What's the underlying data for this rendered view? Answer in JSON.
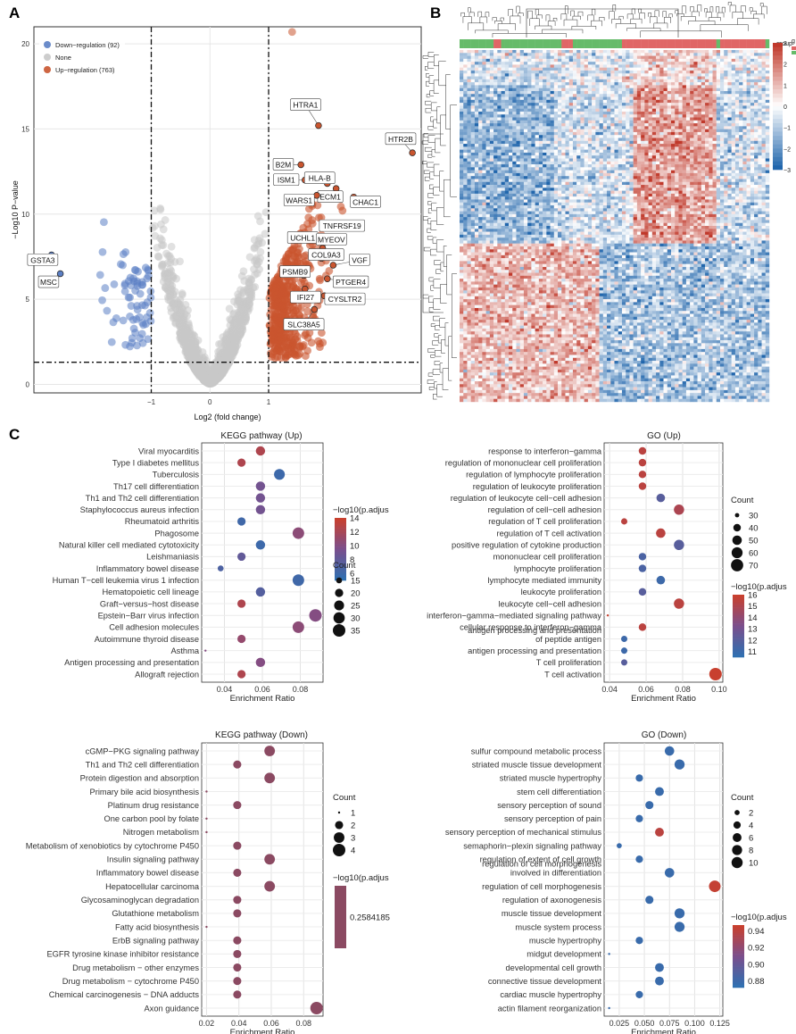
{
  "panel_labels": {
    "a": "A",
    "b": "B",
    "c": "C"
  },
  "colors": {
    "down": "#5b7fc4",
    "none": "#c8c8c8",
    "up": "#c9552f",
    "heat_high": "#c0392b",
    "heat_low": "#2166ac",
    "group_a": "#66bb6a",
    "group_b": "#e06666"
  },
  "chart_data": [
    {
      "id": "volcano",
      "type": "scatter",
      "xlabel": "Log2 (fold change)",
      "ylabel": "−Log10 P−value",
      "xlim": [
        -3.0,
        3.6
      ],
      "ylim": [
        -0.5,
        21
      ],
      "xticks": [
        {
          "v": -1,
          "t": "−1"
        },
        {
          "v": 0,
          "t": "0"
        },
        {
          "v": 1,
          "t": "1"
        }
      ],
      "yticks": [
        {
          "v": 0,
          "t": "0"
        },
        {
          "v": 5,
          "t": "5"
        },
        {
          "v": 10,
          "t": "10"
        },
        {
          "v": 15,
          "t": "15"
        },
        {
          "v": 20,
          "t": "20"
        }
      ],
      "thresholds": {
        "fold_change": [
          -1,
          1
        ],
        "p_value": 1.3
      },
      "legend": [
        {
          "label": "Down−regulation (92)",
          "color": "#5b7fc4"
        },
        {
          "label": "None",
          "color": "#c8c8c8"
        },
        {
          "label": "Up−regulation (763)",
          "color": "#c9552f"
        }
      ],
      "labeled_genes": [
        {
          "gene": "HTRA1",
          "x": 1.85,
          "y": 15.2,
          "lx": 1.63,
          "ly": 16.4
        },
        {
          "gene": "HTR2B",
          "x": 3.45,
          "y": 13.6,
          "lx": 3.25,
          "ly": 14.4
        },
        {
          "gene": "B2M",
          "x": 1.55,
          "y": 12.9,
          "lx": 1.25,
          "ly": 12.9
        },
        {
          "gene": "ISM1",
          "x": 1.62,
          "y": 12.0,
          "lx": 1.3,
          "ly": 12.0
        },
        {
          "gene": "HLA-B",
          "x": 2.0,
          "y": 11.8,
          "lx": 1.87,
          "ly": 12.1
        },
        {
          "gene": "ECM1",
          "x": 2.15,
          "y": 11.5,
          "lx": 2.05,
          "ly": 11.0
        },
        {
          "gene": "CHAC1",
          "x": 2.45,
          "y": 11.0,
          "lx": 2.65,
          "ly": 10.7
        },
        {
          "gene": "WARS1",
          "x": 1.82,
          "y": 11.1,
          "lx": 1.52,
          "ly": 10.8
        },
        {
          "gene": "TNFRSF19",
          "x": 1.95,
          "y": 9.2,
          "lx": 2.25,
          "ly": 9.3
        },
        {
          "gene": "UCHL1",
          "x": 1.75,
          "y": 8.6,
          "lx": 1.58,
          "ly": 8.6
        },
        {
          "gene": "MYEOV",
          "x": 1.92,
          "y": 8.0,
          "lx": 2.07,
          "ly": 8.5
        },
        {
          "gene": "COL9A3",
          "x": 1.9,
          "y": 7.4,
          "lx": 1.98,
          "ly": 7.6
        },
        {
          "gene": "VGF",
          "x": 2.1,
          "y": 7.0,
          "lx": 2.55,
          "ly": 7.3
        },
        {
          "gene": "PSMB9",
          "x": 1.6,
          "y": 6.4,
          "lx": 1.45,
          "ly": 6.6
        },
        {
          "gene": "PTGER4",
          "x": 2.0,
          "y": 6.2,
          "lx": 2.4,
          "ly": 6.0
        },
        {
          "gene": "IFI27",
          "x": 1.62,
          "y": 5.6,
          "lx": 1.63,
          "ly": 5.1
        },
        {
          "gene": "CYSLTR2",
          "x": 1.95,
          "y": 5.2,
          "lx": 2.3,
          "ly": 5.0
        },
        {
          "gene": "SLC38A5",
          "x": 1.78,
          "y": 4.4,
          "lx": 1.6,
          "ly": 3.5
        },
        {
          "gene": "GSTA3",
          "x": -2.7,
          "y": 7.6,
          "lx": -2.85,
          "ly": 7.3
        },
        {
          "gene": "MSC",
          "x": -2.55,
          "y": 6.5,
          "lx": -2.75,
          "ly": 6.0
        }
      ]
    },
    {
      "id": "heatmap",
      "type": "heatmap",
      "legend_title": "group",
      "scale_ticks": [
        {
          "v": 3,
          "t": "3"
        },
        {
          "v": 2,
          "t": "2"
        },
        {
          "v": 1,
          "t": "1"
        },
        {
          "v": 0,
          "t": "0"
        },
        {
          "v": -1,
          "t": "−1"
        },
        {
          "v": -2,
          "t": "−2"
        },
        {
          "v": -3,
          "t": "−3"
        }
      ],
      "legend_clip": "g"
    },
    {
      "id": "kegg_up",
      "type": "scatter",
      "title": "KEGG pathway (Up)",
      "xlabel": "Enrichment Ratio",
      "xlim": [
        0.028,
        0.092
      ],
      "xticks": [
        {
          "v": 0.04,
          "t": "0.04"
        },
        {
          "v": 0.06,
          "t": "0.06"
        },
        {
          "v": 0.08,
          "t": "0.08"
        }
      ],
      "terms": [
        "Viral myocarditis",
        "Type I diabetes mellitus",
        "Tuberculosis",
        "Th17 cell differentiation",
        "Th1 and Th2 cell differentiation",
        "Staphylococcus aureus infection",
        "Rheumatoid arthritis",
        "Phagosome",
        "Natural killer cell mediated cytotoxicity",
        "Leishmaniasis",
        "Inflammatory bowel disease",
        "Human T−cell leukemia virus 1 infection",
        "Hematopoietic cell lineage",
        "Graft−versus−host disease",
        "Epstein−Barr virus infection",
        "Cell adhesion molecules",
        "Autoimmune thyroid disease",
        "Asthma",
        "Antigen processing and presentation",
        "Allograft rejection"
      ],
      "ratio": [
        0.059,
        0.049,
        0.069,
        0.059,
        0.059,
        0.059,
        0.049,
        0.079,
        0.059,
        0.049,
        0.038,
        0.079,
        0.059,
        0.049,
        0.088,
        0.079,
        0.049,
        0.03,
        0.059,
        0.049
      ],
      "count": [
        23,
        20,
        28,
        23,
        23,
        23,
        20,
        31,
        23,
        20,
        15,
        31,
        23,
        20,
        35,
        31,
        20,
        12,
        23,
        20
      ],
      "neglog10p": [
        12.5,
        12.5,
        5.8,
        9,
        9,
        9,
        6,
        10.5,
        5.8,
        8,
        6.8,
        6,
        7.2,
        12.5,
        10,
        10.5,
        11,
        10,
        10,
        12.5
      ],
      "size_legend": {
        "title": "Count",
        "values": [
          15,
          20,
          25,
          30,
          35
        ],
        "labels": [
          "15",
          "20",
          "25",
          "30",
          "35"
        ],
        "range": [
          12,
          35
        ]
      },
      "color_legend": {
        "title": "−log10(p.adjus",
        "range": [
          5,
          14
        ],
        "ticks": [
          {
            "v": 6,
            "t": "6"
          },
          {
            "v": 8,
            "t": "8"
          },
          {
            "v": 10,
            "t": "10"
          },
          {
            "v": 12,
            "t": "12"
          },
          {
            "v": 14,
            "t": "14"
          }
        ]
      }
    },
    {
      "id": "go_up",
      "type": "scatter",
      "title": "GO (Up)",
      "xlabel": "Enrichment Ratio",
      "xlim": [
        0.037,
        0.102
      ],
      "xticks": [
        {
          "v": 0.04,
          "t": "0.04"
        },
        {
          "v": 0.06,
          "t": "0.06"
        },
        {
          "v": 0.08,
          "t": "0.08"
        },
        {
          "v": 0.1,
          "t": "0.10"
        }
      ],
      "terms": [
        "response to interferon−gamma",
        "regulation of mononuclear cell proliferation",
        "regulation of lymphocyte proliferation",
        "regulation of leukocyte proliferation",
        "regulation of leukocyte cell−cell adhesion",
        "regulation of cell−cell adhesion",
        "regulation of T cell proliferation",
        "regulation of T cell activation",
        "positive regulation of cytokine production",
        "mononuclear cell proliferation",
        "lymphocyte proliferation",
        "lymphocyte mediated immunity",
        "leukocyte proliferation",
        "leukocyte cell−cell adhesion",
        "interferon−gamma−mediated signaling pathway",
        "cellular response to interferon−gamma",
        "antigen processing and presentation\nof peptide antigen",
        "antigen processing and presentation",
        "T cell proliferation",
        "T cell activation"
      ],
      "ratio": [
        0.058,
        0.058,
        0.058,
        0.058,
        0.068,
        0.078,
        0.048,
        0.068,
        0.078,
        0.058,
        0.058,
        0.068,
        0.058,
        0.078,
        0.039,
        0.058,
        0.048,
        0.048,
        0.048,
        0.098
      ],
      "count": [
        40,
        40,
        40,
        40,
        45,
        55,
        35,
        50,
        55,
        40,
        40,
        45,
        40,
        55,
        28,
        40,
        35,
        35,
        35,
        72
      ],
      "neglog10p": [
        15.5,
        15.5,
        15.5,
        15.5,
        12,
        15,
        15.5,
        15.5,
        12,
        11.5,
        11.5,
        11,
        12,
        15.5,
        16,
        15.5,
        11,
        11,
        12,
        16
      ],
      "size_legend": {
        "title": "Count",
        "values": [
          30,
          40,
          50,
          60,
          70
        ],
        "labels": [
          "30",
          "40",
          "50",
          "60",
          "70"
        ],
        "range": [
          28,
          72
        ]
      },
      "color_legend": {
        "title": "−log10(p.adjus",
        "range": [
          10.5,
          16
        ],
        "ticks": [
          {
            "v": 11,
            "t": "11"
          },
          {
            "v": 12,
            "t": "12"
          },
          {
            "v": 13,
            "t": "13"
          },
          {
            "v": 14,
            "t": "14"
          },
          {
            "v": 15,
            "t": "15"
          },
          {
            "v": 16,
            "t": "16"
          }
        ]
      }
    },
    {
      "id": "kegg_down",
      "type": "scatter",
      "title": "KEGG pathway (Down)",
      "xlabel": "Enrichment Ratio",
      "xlim": [
        0.017,
        0.092
      ],
      "xticks": [
        {
          "v": 0.02,
          "t": "0.02"
        },
        {
          "v": 0.04,
          "t": "0.04"
        },
        {
          "v": 0.06,
          "t": "0.06"
        },
        {
          "v": 0.08,
          "t": "0.08"
        }
      ],
      "terms": [
        "cGMP−PKG signaling pathway",
        "Th1 and Th2 cell differentiation",
        "Protein digestion and absorption",
        "Primary bile acid biosynthesis",
        "Platinum drug resistance",
        "One carbon pool by folate",
        "Nitrogen metabolism",
        "Metabolism of xenobiotics by cytochrome P450",
        "Insulin signaling pathway",
        "Inflammatory bowel disease",
        "Hepatocellular carcinoma",
        "Glycosaminoglycan degradation",
        "Glutathione metabolism",
        "Fatty acid biosynthesis",
        "ErbB signaling pathway",
        "EGFR tyrosine kinase inhibitor resistance",
        "Drug metabolism − other enzymes",
        "Drug metabolism − cytochrome P450",
        "Chemical carcinogenesis − DNA adducts",
        "Axon guidance"
      ],
      "ratio": [
        0.059,
        0.039,
        0.059,
        0.02,
        0.039,
        0.02,
        0.02,
        0.039,
        0.059,
        0.039,
        0.059,
        0.039,
        0.039,
        0.02,
        0.039,
        0.039,
        0.039,
        0.039,
        0.039,
        0.088
      ],
      "count": [
        3,
        2,
        3,
        1,
        2,
        1,
        1,
        2,
        3,
        2,
        3,
        2,
        2,
        1,
        2,
        2,
        2,
        2,
        2,
        4
      ],
      "neglog10p": [
        0.2584185,
        0.2584185,
        0.2584185,
        0.2584185,
        0.2584185,
        0.2584185,
        0.2584185,
        0.2584185,
        0.2584185,
        0.2584185,
        0.2584185,
        0.2584185,
        0.2584185,
        0.2584185,
        0.2584185,
        0.2584185,
        0.2584185,
        0.2584185,
        0.2584185,
        0.2584185
      ],
      "size_legend": {
        "title": "Count",
        "values": [
          1,
          2,
          3,
          4
        ],
        "labels": [
          "1",
          "2",
          "3",
          "4"
        ],
        "range": [
          1,
          4
        ]
      },
      "color_legend": {
        "title": "−log10(p.adjus",
        "single_value": "0.2584185"
      }
    },
    {
      "id": "go_down",
      "type": "scatter",
      "title": "GO (Down)",
      "xlabel": "Enrichment Ratio",
      "xlim": [
        0.01,
        0.128
      ],
      "xticks": [
        {
          "v": 0.025,
          "t": "0.025"
        },
        {
          "v": 0.05,
          "t": "0.050"
        },
        {
          "v": 0.075,
          "t": "0.075"
        },
        {
          "v": 0.1,
          "t": "0.100"
        },
        {
          "v": 0.125,
          "t": "0.125"
        }
      ],
      "terms": [
        "sulfur compound metabolic process",
        "striated muscle tissue development",
        "striated muscle hypertrophy",
        "stem cell differentiation",
        "sensory perception of sound",
        "sensory perception of pain",
        "sensory perception of mechanical stimulus",
        "semaphorin−plexin signaling pathway",
        "regulation of extent of cell growth",
        "regulation of cell morphogenesis\ninvolved in differentiation",
        "regulation of cell morphogenesis",
        "regulation of axonogenesis",
        "muscle tissue development",
        "muscle system process",
        "muscle hypertrophy",
        "midgut development",
        "developmental cell growth",
        "connective tissue development",
        "cardiac muscle hypertrophy",
        "actin filament reorganization"
      ],
      "ratio": [
        0.075,
        0.085,
        0.045,
        0.065,
        0.055,
        0.045,
        0.065,
        0.025,
        0.045,
        0.075,
        0.12,
        0.055,
        0.085,
        0.085,
        0.045,
        0.015,
        0.065,
        0.065,
        0.045,
        0.015
      ],
      "count": [
        7,
        8,
        4,
        6,
        5,
        4,
        6,
        2,
        4,
        7,
        11,
        5,
        8,
        8,
        4,
        1,
        6,
        6,
        4,
        1
      ],
      "neglog10p": [
        0.877,
        0.877,
        0.877,
        0.877,
        0.877,
        0.877,
        0.94,
        0.877,
        0.877,
        0.877,
        0.945,
        0.877,
        0.877,
        0.877,
        0.877,
        0.877,
        0.877,
        0.877,
        0.877,
        0.877
      ],
      "size_legend": {
        "title": "Count",
        "values": [
          2,
          4,
          6,
          8,
          10
        ],
        "labels": [
          "2",
          "4",
          "6",
          "8",
          "10"
        ],
        "range": [
          1,
          11
        ]
      },
      "color_legend": {
        "title": "−log10(p.adjus",
        "range": [
          0.872,
          0.947
        ],
        "ticks": [
          {
            "v": 0.88,
            "t": "0.88"
          },
          {
            "v": 0.9,
            "t": "0.90"
          },
          {
            "v": 0.92,
            "t": "0.92"
          },
          {
            "v": 0.94,
            "t": "0.94"
          }
        ]
      }
    }
  ]
}
